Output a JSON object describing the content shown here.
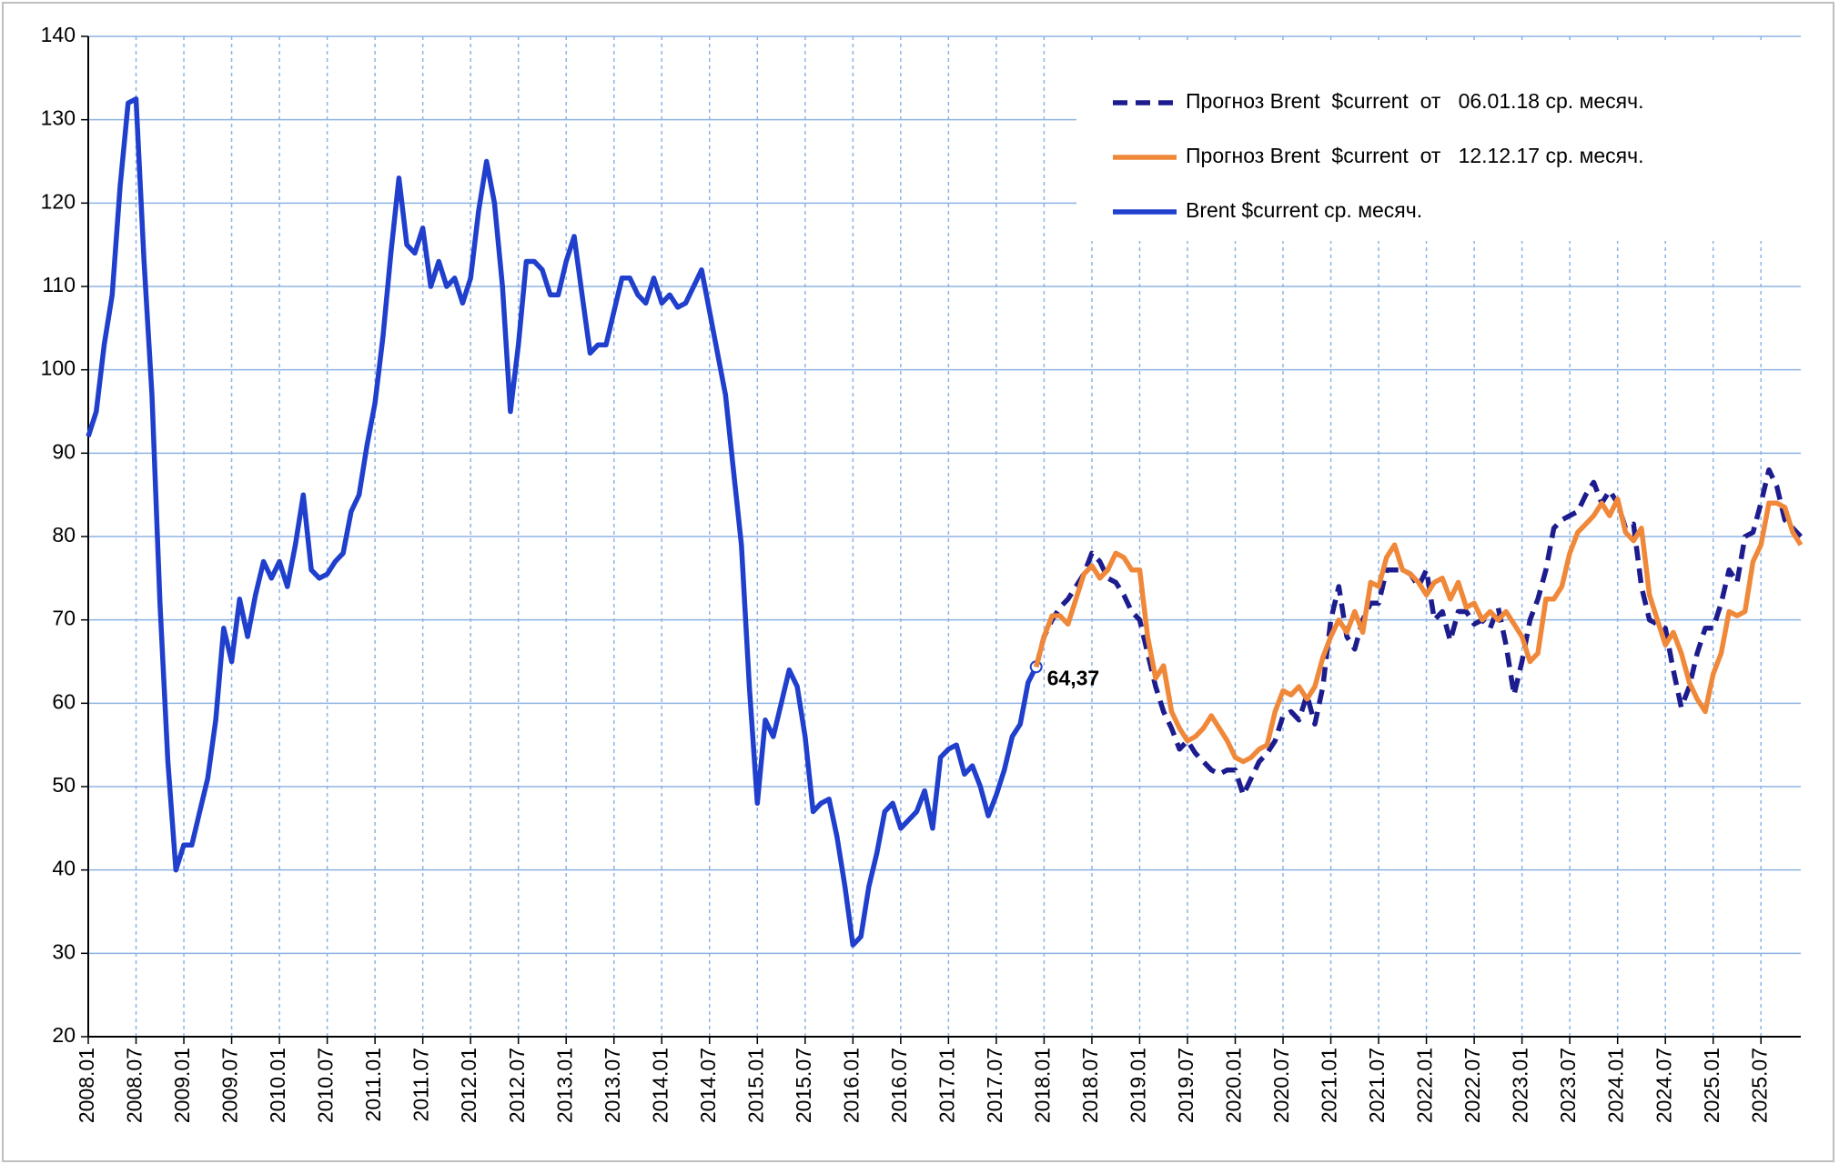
{
  "chart_data": {
    "type": "line",
    "categories": [
      "2008.01",
      null,
      null,
      null,
      null,
      null,
      "2008.07",
      null,
      null,
      null,
      null,
      null,
      "2009.01",
      null,
      null,
      null,
      null,
      null,
      "2009.07",
      null,
      null,
      null,
      null,
      null,
      "2010.01",
      null,
      null,
      null,
      null,
      null,
      "2010.07",
      null,
      null,
      null,
      null,
      null,
      "2011.01",
      null,
      null,
      null,
      null,
      null,
      "2011.07",
      null,
      null,
      null,
      null,
      null,
      "2012.01",
      null,
      null,
      null,
      null,
      null,
      "2012.07",
      null,
      null,
      null,
      null,
      null,
      "2013.01",
      null,
      null,
      null,
      null,
      null,
      "2013.07",
      null,
      null,
      null,
      null,
      null,
      "2014.01",
      null,
      null,
      null,
      null,
      null,
      "2014.07",
      null,
      null,
      null,
      null,
      null,
      "2015.01",
      null,
      null,
      null,
      null,
      null,
      "2015.07",
      null,
      null,
      null,
      null,
      null,
      "2016.01",
      null,
      null,
      null,
      null,
      null,
      "2016.07",
      null,
      null,
      null,
      null,
      null,
      "2017.01",
      null,
      null,
      null,
      null,
      null,
      "2017.07",
      null,
      null,
      null,
      null,
      null,
      "2018.01",
      null,
      null,
      null,
      null,
      null,
      "2018.07",
      null,
      null,
      null,
      null,
      null,
      "2019.01",
      null,
      null,
      null,
      null,
      null,
      "2019.07",
      null,
      null,
      null,
      null,
      null,
      "2020.01",
      null,
      null,
      null,
      null,
      null,
      "2020.07",
      null,
      null,
      null,
      null,
      null,
      "2021.01",
      null,
      null,
      null,
      null,
      null,
      "2021.07",
      null,
      null,
      null,
      null,
      null,
      "2022.01",
      null,
      null,
      null,
      null,
      null,
      "2022.07",
      null,
      null,
      null,
      null,
      null,
      "2023.01",
      null,
      null,
      null,
      null,
      null,
      "2023.07",
      null,
      null,
      null,
      null,
      null,
      "2024.01",
      null,
      null,
      null,
      null,
      null,
      "2024.07",
      null,
      null,
      null,
      null,
      null,
      "2025.01",
      null,
      null,
      null,
      null,
      null,
      "2025.07",
      null,
      null,
      null,
      null,
      null
    ],
    "series": [
      {
        "name": "Прогноз Brent  $current  от   06.01.18 ср. месяч.",
        "color": "#1c1c8e",
        "dash": true,
        "values": [
          null,
          null,
          null,
          null,
          null,
          null,
          null,
          null,
          null,
          null,
          null,
          null,
          null,
          null,
          null,
          null,
          null,
          null,
          null,
          null,
          null,
          null,
          null,
          null,
          null,
          null,
          null,
          null,
          null,
          null,
          null,
          null,
          null,
          null,
          null,
          null,
          null,
          null,
          null,
          null,
          null,
          null,
          null,
          null,
          null,
          null,
          null,
          null,
          null,
          null,
          null,
          null,
          null,
          null,
          null,
          null,
          null,
          null,
          null,
          null,
          null,
          null,
          null,
          null,
          null,
          null,
          null,
          null,
          null,
          null,
          null,
          null,
          null,
          null,
          null,
          null,
          null,
          null,
          null,
          null,
          null,
          null,
          null,
          null,
          null,
          null,
          null,
          null,
          null,
          null,
          null,
          null,
          null,
          null,
          null,
          null,
          null,
          null,
          null,
          null,
          null,
          null,
          null,
          null,
          null,
          null,
          null,
          null,
          null,
          null,
          null,
          null,
          null,
          null,
          null,
          null,
          null,
          null,
          null,
          64.37,
          68,
          70,
          71.5,
          72.5,
          74,
          75.5,
          78,
          77,
          75,
          74.5,
          73,
          71,
          70,
          66,
          62,
          59,
          57,
          54.5,
          55.5,
          54,
          53,
          52,
          51.5,
          52,
          52,
          49,
          51,
          53,
          54,
          55.5,
          58.5,
          59,
          58,
          61,
          57.5,
          62,
          70,
          74,
          68,
          66.5,
          70,
          72,
          72,
          76,
          76,
          76,
          75.5,
          74,
          76,
          70,
          71,
          67.5,
          71,
          71,
          69.5,
          70,
          69,
          71.5,
          67,
          61,
          65,
          70,
          72.5,
          76,
          81,
          82,
          82.5,
          83,
          85,
          86.5,
          84,
          85.5,
          84,
          81,
          81.5,
          74,
          70,
          69.5,
          69,
          64,
          59.5,
          62,
          66,
          69,
          69,
          72,
          76,
          74.5,
          80,
          80.5,
          84,
          88,
          86,
          82,
          81,
          80
        ]
      },
      {
        "name": "Прогноз Brent  $current  от   12.12.17 ср. месяч.",
        "color": "#f0883a",
        "dash": false,
        "values": [
          null,
          null,
          null,
          null,
          null,
          null,
          null,
          null,
          null,
          null,
          null,
          null,
          null,
          null,
          null,
          null,
          null,
          null,
          null,
          null,
          null,
          null,
          null,
          null,
          null,
          null,
          null,
          null,
          null,
          null,
          null,
          null,
          null,
          null,
          null,
          null,
          null,
          null,
          null,
          null,
          null,
          null,
          null,
          null,
          null,
          null,
          null,
          null,
          null,
          null,
          null,
          null,
          null,
          null,
          null,
          null,
          null,
          null,
          null,
          null,
          null,
          null,
          null,
          null,
          null,
          null,
          null,
          null,
          null,
          null,
          null,
          null,
          null,
          null,
          null,
          null,
          null,
          null,
          null,
          null,
          null,
          null,
          null,
          null,
          null,
          null,
          null,
          null,
          null,
          null,
          null,
          null,
          null,
          null,
          null,
          null,
          null,
          null,
          null,
          null,
          null,
          null,
          null,
          null,
          null,
          null,
          null,
          null,
          null,
          null,
          null,
          null,
          null,
          null,
          null,
          null,
          null,
          null,
          null,
          64.37,
          68,
          70.5,
          70.5,
          69.5,
          72.5,
          75.5,
          76.5,
          75,
          76,
          78,
          77.5,
          76,
          76,
          68,
          63,
          64.5,
          59,
          57,
          55.5,
          56,
          57,
          58.5,
          57,
          55.5,
          53.5,
          53,
          53.5,
          54.5,
          55,
          59,
          61.5,
          61,
          62,
          60.5,
          62,
          65.5,
          68,
          70,
          68.5,
          71,
          68.5,
          74.5,
          74,
          77.5,
          79,
          76,
          75.5,
          74.5,
          73,
          74.5,
          75,
          72.5,
          74.5,
          71.5,
          72,
          70,
          71,
          70,
          71,
          69.5,
          68,
          65,
          66,
          72.5,
          72.5,
          74,
          78,
          80.5,
          81.5,
          82.5,
          84,
          82.5,
          84.5,
          80.5,
          79.5,
          81,
          73,
          70,
          67,
          68.5,
          66,
          62.5,
          60.5,
          59,
          63.5,
          66,
          71,
          70.5,
          71,
          77,
          79,
          84,
          84,
          83.5,
          80.5,
          79
        ]
      },
      {
        "name": "Brent $current ср. месяч.",
        "color": "#1f3fcc",
        "dash": false,
        "values": [
          92,
          95,
          103,
          109,
          122,
          132,
          132.5,
          113,
          97,
          72,
          53,
          40,
          43,
          43,
          47,
          51,
          58,
          69,
          65,
          72.5,
          68,
          73,
          77,
          75,
          77,
          74,
          79,
          85,
          76,
          75,
          75.5,
          77,
          78,
          83,
          85,
          91,
          96,
          104,
          114,
          123,
          115,
          114,
          117,
          110,
          113,
          110,
          111,
          108,
          111,
          119,
          125,
          120,
          110,
          95,
          103,
          113,
          113,
          112,
          109,
          109,
          113,
          116,
          109,
          102,
          103,
          103,
          107,
          111,
          111,
          109,
          108,
          111,
          108,
          109,
          107.5,
          108,
          110,
          112,
          107,
          102,
          97,
          88,
          79,
          62,
          48,
          58,
          56,
          60,
          64,
          62,
          56,
          47,
          48,
          48.5,
          44,
          38,
          31,
          32,
          38,
          42,
          47,
          48,
          45,
          46,
          47,
          49.5,
          45,
          53.5,
          54.5,
          55,
          51.5,
          52.5,
          50,
          46.5,
          49,
          52,
          56,
          57.5,
          62.5,
          64.37,
          null,
          null,
          null,
          null,
          null,
          null,
          null,
          null,
          null,
          null,
          null,
          null,
          null,
          null,
          null,
          null,
          null,
          null,
          null,
          null,
          null,
          null,
          null,
          null,
          null,
          null,
          null,
          null,
          null,
          null,
          null,
          null,
          null,
          null,
          null,
          null,
          null,
          null,
          null,
          null,
          null,
          null,
          null,
          null,
          null,
          null,
          null,
          null,
          null,
          null,
          null,
          null,
          null,
          null,
          null,
          null,
          null,
          null,
          null,
          null,
          null,
          null,
          null,
          null,
          null,
          null,
          null,
          null,
          null,
          null,
          null,
          null,
          null,
          null,
          null,
          null,
          null,
          null,
          null,
          null,
          null,
          null,
          null,
          null,
          null,
          null,
          null,
          null,
          null,
          null,
          null,
          null,
          null,
          null,
          null,
          null
        ],
        "value_labels": [
          null,
          null,
          null,
          null,
          null,
          null,
          null,
          null,
          null,
          null,
          null,
          null,
          null,
          null,
          null,
          null,
          null,
          null,
          null,
          null,
          null,
          null,
          null,
          null,
          null,
          null,
          null,
          null,
          null,
          null,
          null,
          null,
          null,
          null,
          null,
          null,
          null,
          null,
          null,
          null,
          null,
          null,
          null,
          null,
          null,
          null,
          null,
          null,
          null,
          null,
          null,
          null,
          null,
          null,
          null,
          null,
          null,
          null,
          null,
          null,
          null,
          null,
          null,
          null,
          null,
          null,
          null,
          null,
          null,
          null,
          null,
          null,
          null,
          null,
          null,
          null,
          null,
          null,
          null,
          null,
          null,
          null,
          null,
          null,
          null,
          null,
          null,
          null,
          null,
          null,
          null,
          null,
          null,
          null,
          null,
          null,
          null,
          null,
          null,
          null,
          null,
          null,
          null,
          null,
          null,
          null,
          null,
          null,
          null,
          null,
          null,
          null,
          null,
          null,
          null,
          null,
          null,
          null,
          null,
          "64,37",
          null,
          null,
          null,
          null,
          null,
          null,
          null,
          null,
          null,
          null,
          null,
          null,
          null,
          null,
          null,
          null,
          null,
          null,
          null,
          null,
          null,
          null,
          null,
          null,
          null,
          null,
          null,
          null,
          null,
          null,
          null,
          null,
          null,
          null,
          null,
          null,
          null,
          null,
          null,
          null,
          null,
          null,
          null,
          null,
          null,
          null,
          null,
          null,
          null,
          null,
          null,
          null,
          null,
          null,
          null,
          null,
          null,
          null,
          null,
          null,
          null,
          null,
          null,
          null,
          null,
          null,
          null,
          null,
          null,
          null,
          null,
          null,
          null,
          null,
          null,
          null,
          null,
          null,
          null,
          null,
          null,
          null,
          null,
          null,
          null,
          null,
          null,
          null,
          null,
          null,
          null,
          null,
          null,
          null,
          null,
          null
        ]
      }
    ],
    "ylim": [
      20,
      140
    ],
    "yticks": [
      20,
      30,
      40,
      50,
      60,
      70,
      80,
      90,
      100,
      110,
      120,
      130,
      140
    ],
    "grid": true,
    "legend": "upper right"
  }
}
